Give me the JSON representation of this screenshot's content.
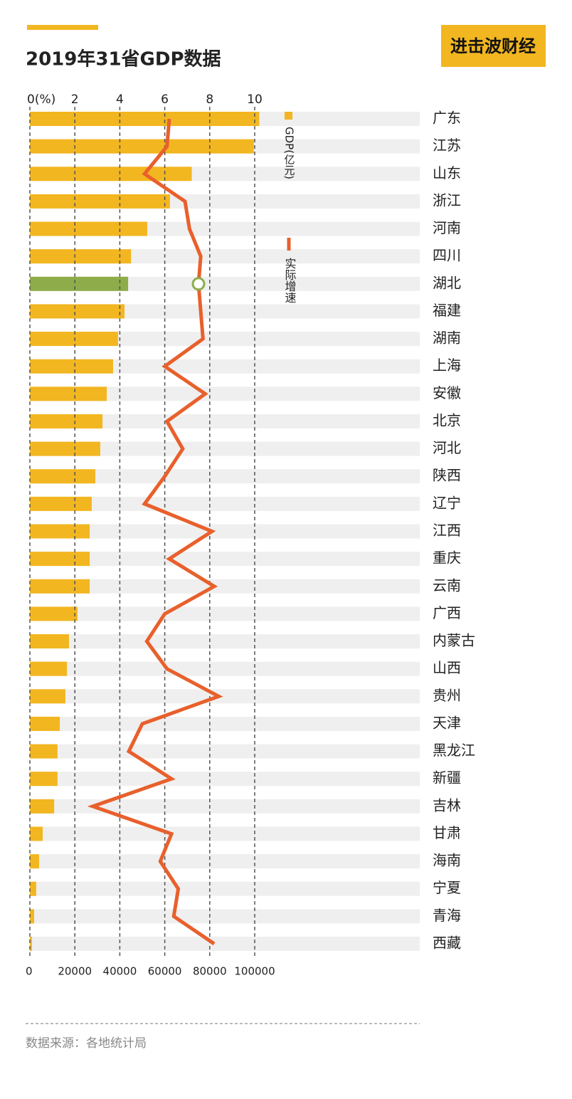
{
  "logo": "进击波财经",
  "chart_data": {
    "type": "bar",
    "orientation": "horizontal",
    "title": "2019年31省GDP数据",
    "source": "数据来源：各地统计局",
    "categories": [
      "广东",
      "江苏",
      "山东",
      "浙江",
      "河南",
      "四川",
      "湖北",
      "福建",
      "湖南",
      "上海",
      "安徽",
      "北京",
      "河北",
      "陕西",
      "辽宁",
      "江西",
      "重庆",
      "云南",
      "广西",
      "内蒙古",
      "山西",
      "贵州",
      "天津",
      "黑龙江",
      "新疆",
      "吉林",
      "甘肃",
      "海南",
      "宁夏",
      "青海",
      "西藏"
    ],
    "series": [
      {
        "name": "GDP(亿元)",
        "type": "bar",
        "color": "#f2b620",
        "highlight_color": "#8eac4a",
        "highlight": "湖北",
        "values": [
          102000,
          99600,
          72000,
          62300,
          52200,
          45000,
          43700,
          42100,
          39200,
          37000,
          34200,
          32300,
          31300,
          29100,
          27500,
          26600,
          26600,
          26600,
          21200,
          17400,
          16500,
          15800,
          13300,
          12300,
          12300,
          10800,
          5700,
          4100,
          2800,
          1900,
          900
        ]
      },
      {
        "name": "实际增速",
        "type": "line",
        "axis": "x2",
        "color": "#e8602c",
        "values": [
          6.2,
          6.1,
          5.1,
          6.9,
          7.1,
          7.6,
          7.5,
          7.6,
          7.7,
          6.0,
          7.8,
          6.1,
          6.8,
          6.0,
          5.1,
          8.1,
          6.2,
          8.2,
          6.0,
          5.2,
          6.1,
          8.4,
          5.0,
          4.4,
          6.3,
          2.8,
          6.3,
          5.8,
          6.6,
          6.4,
          8.2
        ]
      }
    ],
    "xlim": [
      0,
      100000
    ],
    "xticks": [
      0,
      20000,
      40000,
      60000,
      80000,
      100000
    ],
    "x2lim": [
      0,
      10
    ],
    "x2ticks": [
      {
        "value": 0,
        "label": "0(%)"
      },
      2,
      4,
      6,
      8,
      10
    ],
    "grid": true
  }
}
